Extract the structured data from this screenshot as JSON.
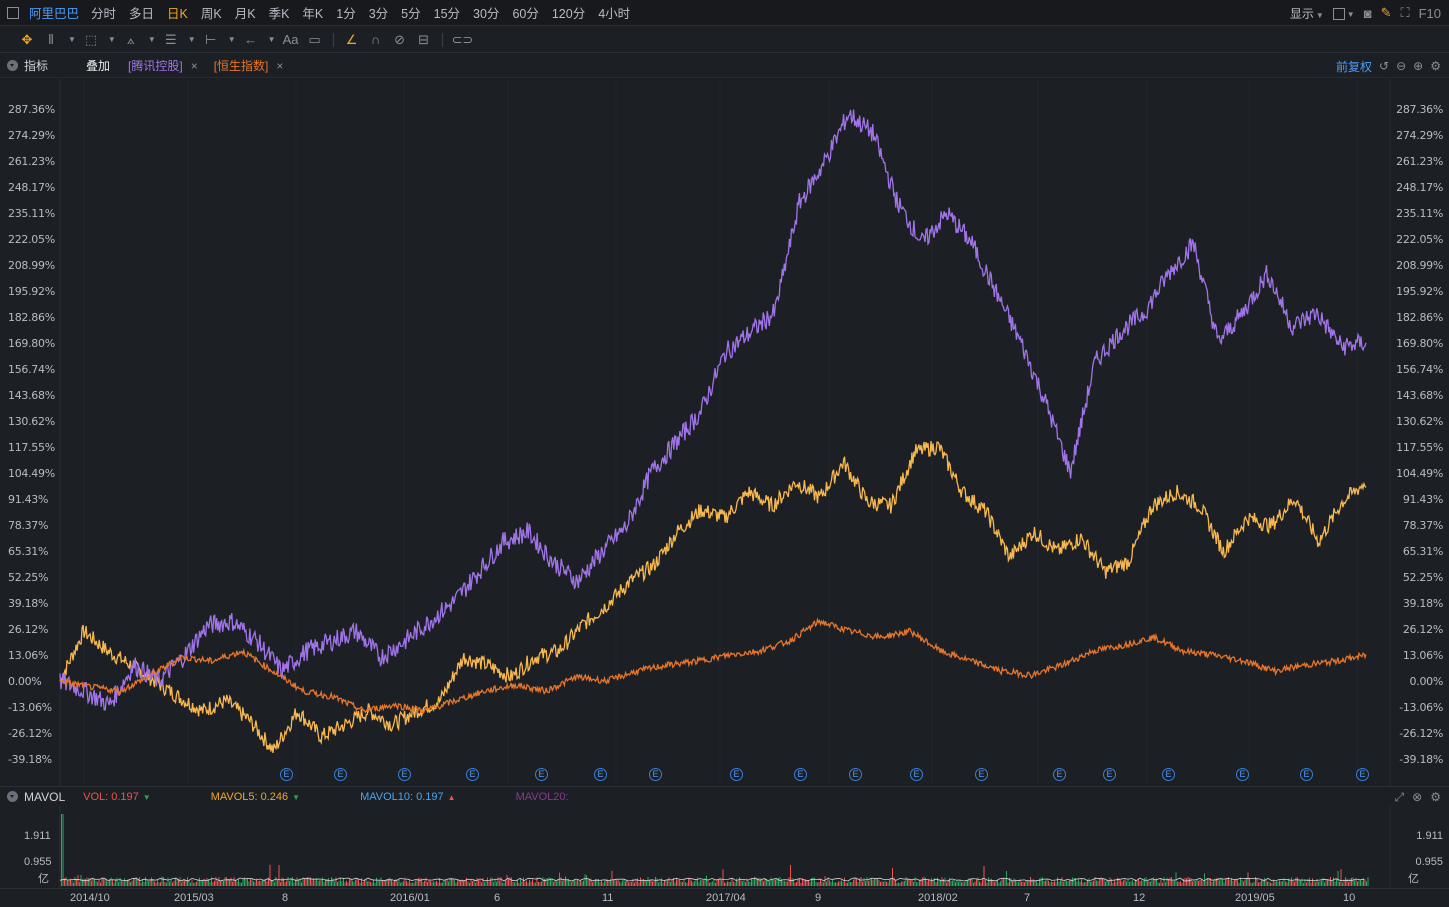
{
  "topbar": {
    "stock_name": "阿里巴巴",
    "periods": [
      "分时",
      "多日",
      "日K",
      "周K",
      "月K",
      "季K",
      "年K",
      "1分",
      "3分",
      "5分",
      "15分",
      "30分",
      "60分",
      "120分",
      "4小时"
    ],
    "active_period": "日K",
    "display_label": "显示",
    "f10_label": "F10"
  },
  "indicator_bar": {
    "indicator_label": "指标",
    "overlay_label": "叠加",
    "overlays": [
      {
        "label": "[腾讯控股]",
        "color": "#a074e8"
      },
      {
        "label": "[恒生指数]",
        "color": "#e8762a"
      }
    ],
    "adjust_label": "前复权"
  },
  "main_axis_labels": [
    "287.36%",
    "274.29%",
    "261.23%",
    "248.17%",
    "235.11%",
    "222.05%",
    "208.99%",
    "195.92%",
    "182.86%",
    "169.80%",
    "156.74%",
    "143.68%",
    "130.62%",
    "117.55%",
    "104.49%",
    "91.43%",
    "78.37%",
    "65.31%",
    "52.25%",
    "39.18%",
    "26.12%",
    "13.06%",
    "0.00%",
    "-13.06%",
    "-26.12%",
    "-39.18%"
  ],
  "event_markers": [
    "E",
    "E",
    "E",
    "E",
    "E",
    "E",
    "E",
    "E",
    "E",
    "E",
    "E",
    "E",
    "E",
    "E",
    "E",
    "E",
    "E",
    "E"
  ],
  "volume": {
    "name": "MAVOL",
    "items": [
      {
        "label": "VOL: 0.197",
        "arrow": "▼",
        "color": "#ef5350",
        "arrow_color": "#26a65b"
      },
      {
        "label": "MAVOL5: 0.246",
        "arrow": "▼",
        "color": "#f5a623",
        "arrow_color": "#26a65b"
      },
      {
        "label": "MAVOL10: 0.197",
        "arrow": "▲",
        "color": "#4aa3f0",
        "arrow_color": "#ef5350"
      },
      {
        "label": "MAVOL20:",
        "arrow": "",
        "color": "#8a3a8e",
        "arrow_color": ""
      }
    ],
    "axis_labels": [
      "1.911",
      "0.955",
      "亿"
    ]
  },
  "date_axis": [
    "2014/10",
    "2015/03",
    "8",
    "2016/01",
    "6",
    "11",
    "2017/04",
    "9",
    "2018/02",
    "7",
    "12",
    "2019/05",
    "10"
  ],
  "colors": {
    "alibaba": "#f8b84e",
    "tencent": "#a074e8",
    "hsi": "#e8762a",
    "up": "#ef5350",
    "down": "#26a65b",
    "accent_blue": "#4a9df8",
    "active": "#f5a623"
  },
  "chart_data": {
    "type": "line",
    "ylim": [
      -39.18,
      287.36
    ],
    "series": [
      {
        "name": "阿里巴巴",
        "values": [
          0,
          25,
          15,
          8,
          0,
          -8,
          -15,
          -10,
          -20,
          -35,
          -15,
          -28,
          -22,
          -15,
          -22,
          -15,
          -10,
          12,
          8,
          2,
          12,
          15,
          28,
          38,
          50,
          58,
          75,
          86,
          82,
          95,
          88,
          100,
          92,
          110,
          90,
          88,
          115,
          118,
          95,
          85,
          62,
          75,
          65,
          72,
          55,
          60,
          88,
          95,
          88,
          65,
          82,
          78,
          92,
          70,
          90,
          100
        ]
      },
      {
        "name": "腾讯控股",
        "values": [
          0,
          -5,
          -12,
          8,
          0,
          12,
          28,
          30,
          20,
          5,
          15,
          20,
          25,
          12,
          20,
          30,
          40,
          55,
          70,
          75,
          60,
          50,
          65,
          78,
          105,
          120,
          135,
          165,
          175,
          185,
          240,
          260,
          285,
          275,
          240,
          220,
          235,
          220,
          195,
          170,
          140,
          105,
          160,
          175,
          185,
          205,
          220,
          170,
          185,
          205,
          178,
          185,
          168,
          170
        ]
      },
      {
        "name": "恒生指数",
        "values": [
          0,
          -3,
          -5,
          3,
          12,
          10,
          15,
          5,
          -5,
          -8,
          -15,
          -12,
          -15,
          -10,
          -5,
          -2,
          -5,
          2,
          0,
          5,
          8,
          10,
          13,
          15,
          20,
          30,
          25,
          22,
          25,
          15,
          10,
          5,
          3,
          8,
          15,
          18,
          22,
          15,
          13,
          10,
          5,
          8,
          10,
          13
        ]
      }
    ]
  }
}
